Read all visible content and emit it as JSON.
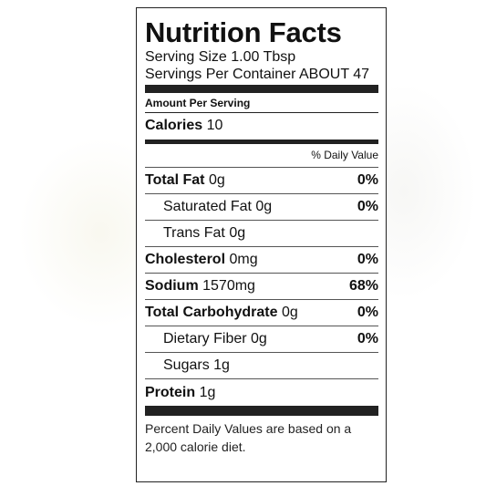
{
  "label": {
    "title": "Nutrition Facts",
    "serving_size": "Serving Size 1.00 Tbsp",
    "servings_per_container": "Servings Per Container ABOUT 47",
    "amount_per_serving": "Amount Per Serving",
    "calories_label": "Calories",
    "calories_value": "10",
    "daily_value_header": "% Daily Value",
    "nutrients": [
      {
        "name": "Total Fat",
        "amount": "0g",
        "pct": "0%"
      },
      {
        "name": "Saturated Fat",
        "amount": "0g",
        "pct": "0%"
      },
      {
        "name": "Trans Fat",
        "amount": "0g",
        "pct": ""
      },
      {
        "name": "Cholesterol",
        "amount": "0mg",
        "pct": "0%"
      },
      {
        "name": "Sodium",
        "amount": "1570mg",
        "pct": "68%"
      },
      {
        "name": "Total Carbohydrate",
        "amount": "0g",
        "pct": "0%"
      },
      {
        "name": "Dietary Fiber",
        "amount": "0g",
        "pct": "0%"
      },
      {
        "name": "Sugars",
        "amount": "1g",
        "pct": ""
      },
      {
        "name": "Protein",
        "amount": "1g",
        "pct": ""
      }
    ],
    "footnote": "Percent Daily Values are based on a 2,000 calorie diet."
  }
}
